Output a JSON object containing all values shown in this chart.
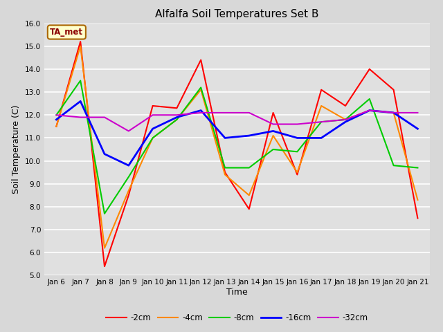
{
  "title": "Alfalfa Soil Temperatures Set B",
  "xlabel": "Time",
  "ylabel": "Soil Temperature (C)",
  "ylim": [
    5.0,
    16.0
  ],
  "yticks": [
    5.0,
    6.0,
    7.0,
    8.0,
    9.0,
    10.0,
    11.0,
    12.0,
    13.0,
    14.0,
    15.0,
    16.0
  ],
  "x_labels": [
    "Jan 6",
    "Jan 7",
    "Jan 8",
    "Jan 9",
    "Jan 10",
    "Jan 11",
    "Jan 12",
    "Jan 13",
    "Jan 14",
    "Jan 15",
    "Jan 16",
    "Jan 17",
    "Jan 18",
    "Jan 19",
    "Jan 20",
    "Jan 21"
  ],
  "annotation": "TA_met",
  "series": {
    "-2cm": {
      "color": "#ff0000",
      "linewidth": 1.5,
      "values": [
        11.5,
        15.2,
        5.4,
        8.5,
        12.4,
        12.3,
        14.4,
        9.5,
        7.9,
        12.1,
        9.4,
        13.1,
        12.4,
        14.0,
        13.1,
        7.5
      ]
    },
    "-4cm": {
      "color": "#ff8800",
      "linewidth": 1.5,
      "values": [
        11.5,
        15.0,
        6.2,
        8.7,
        11.0,
        11.8,
        13.1,
        9.4,
        8.5,
        11.1,
        9.5,
        12.4,
        11.8,
        12.2,
        12.1,
        8.3
      ]
    },
    "-8cm": {
      "color": "#00cc00",
      "linewidth": 1.5,
      "values": [
        12.0,
        13.5,
        7.7,
        9.3,
        11.0,
        11.8,
        13.2,
        9.7,
        9.7,
        10.5,
        10.4,
        11.7,
        11.8,
        12.7,
        9.8,
        9.7
      ]
    },
    "-16cm": {
      "color": "#0000ff",
      "linewidth": 2.0,
      "values": [
        11.8,
        12.6,
        10.3,
        9.8,
        11.4,
        11.9,
        12.2,
        11.0,
        11.1,
        11.3,
        11.0,
        11.0,
        11.7,
        12.2,
        12.1,
        11.4
      ]
    },
    "-32cm": {
      "color": "#cc00cc",
      "linewidth": 1.5,
      "values": [
        12.0,
        11.9,
        11.9,
        11.3,
        12.0,
        12.0,
        12.1,
        12.1,
        12.1,
        11.6,
        11.6,
        11.7,
        11.8,
        12.2,
        12.1,
        12.1
      ]
    }
  },
  "fig_bg_color": "#d8d8d8",
  "plot_bg_color": "#e0e0e0",
  "grid_color": "#ffffff",
  "title_fontsize": 11,
  "axis_label_fontsize": 9,
  "tick_fontsize": 7.5
}
